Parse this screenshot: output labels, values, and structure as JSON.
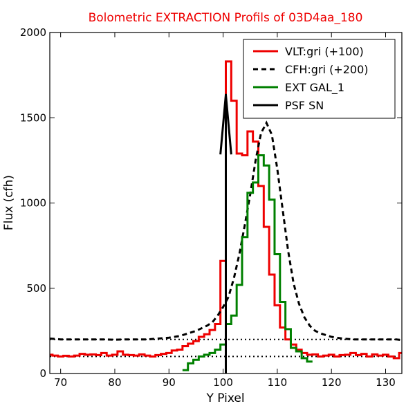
{
  "chart_data": {
    "type": "line",
    "title": "Bolometric EXTRACTION Profils of 03D4aa_180",
    "title_color": "#ee0000",
    "xlabel": "Y Pixel",
    "ylabel": "Flux (cfh)",
    "xlim": [
      68,
      133
    ],
    "ylim": [
      0,
      2000
    ],
    "xticks": [
      70,
      80,
      90,
      100,
      110,
      120,
      130
    ],
    "xtick_labels": [
      "70",
      "80",
      "90",
      "100",
      "110",
      "120",
      "130"
    ],
    "yticks": [
      0,
      500,
      1000,
      1500,
      2000
    ],
    "ytick_labels": [
      "0",
      "500",
      "1000",
      "1500",
      "2000"
    ],
    "grid": false,
    "legend_position": "top-right",
    "reference_lines": [
      {
        "y": 100,
        "style": "dotted",
        "color": "#000000"
      },
      {
        "y": 200,
        "style": "dotted",
        "color": "#000000"
      }
    ],
    "series": [
      {
        "name": "VLT:gri (+100)",
        "color": "#ee0000",
        "style": "steps",
        "x": [
          68,
          69,
          70,
          71,
          72,
          73,
          74,
          75,
          76,
          77,
          78,
          79,
          80,
          81,
          82,
          83,
          84,
          85,
          86,
          87,
          88,
          89,
          90,
          91,
          92,
          93,
          94,
          95,
          96,
          97,
          98,
          99,
          100,
          101,
          102,
          103,
          104,
          105,
          106,
          107,
          108,
          109,
          110,
          111,
          112,
          113,
          114,
          115,
          116,
          117,
          118,
          119,
          120,
          121,
          122,
          123,
          124,
          125,
          126,
          127,
          128,
          129,
          130,
          131,
          132,
          133
        ],
        "y": [
          110,
          105,
          100,
          104,
          100,
          105,
          115,
          110,
          112,
          108,
          120,
          105,
          110,
          130,
          110,
          108,
          105,
          112,
          105,
          100,
          108,
          115,
          120,
          135,
          140,
          160,
          175,
          190,
          215,
          230,
          255,
          290,
          660,
          1830,
          1600,
          1290,
          1280,
          1420,
          1360,
          1100,
          860,
          580,
          400,
          270,
          200,
          170,
          140,
          120,
          110,
          112,
          100,
          105,
          110,
          100,
          108,
          110,
          120,
          108,
          115,
          100,
          112,
          105,
          110,
          100,
          90,
          120
        ]
      },
      {
        "name": "CFH:gri (+200)",
        "color": "#000000",
        "style": "dashed",
        "x": [
          68,
          70,
          72,
          74,
          76,
          78,
          80,
          82,
          84,
          86,
          88,
          90,
          92,
          94,
          95,
          96,
          97,
          98,
          99,
          100,
          101,
          102,
          103,
          104,
          105,
          106,
          107,
          108,
          109,
          110,
          111,
          112,
          113,
          114,
          115,
          116,
          117,
          118,
          120,
          122,
          124,
          126,
          128,
          130,
          132,
          133
        ],
        "y": [
          205,
          200,
          200,
          200,
          200,
          200,
          198,
          200,
          200,
          200,
          205,
          210,
          220,
          240,
          250,
          265,
          280,
          300,
          340,
          390,
          450,
          560,
          700,
          870,
          1050,
          1250,
          1410,
          1470,
          1400,
          1200,
          960,
          720,
          530,
          410,
          330,
          280,
          250,
          235,
          215,
          205,
          200,
          200,
          200,
          200,
          200,
          195
        ]
      },
      {
        "name": "EXT GAL_1",
        "color": "#008000",
        "style": "steps",
        "x": [
          93,
          94,
          95,
          96,
          97,
          98,
          99,
          100,
          101,
          102,
          103,
          104,
          105,
          106,
          107,
          108,
          109,
          110,
          111,
          112,
          113,
          114,
          115,
          116
        ],
        "y": [
          20,
          60,
          80,
          100,
          110,
          120,
          140,
          170,
          290,
          340,
          520,
          800,
          1060,
          1120,
          1280,
          1220,
          1020,
          700,
          420,
          260,
          150,
          130,
          90,
          70
        ]
      },
      {
        "name": "PSF SN",
        "color": "#000000",
        "style": "solid",
        "x": [
          99.5,
          100.5,
          101.5
        ],
        "y": [
          1285,
          1635,
          1285
        ]
      }
    ],
    "vertical_line": {
      "x": 100.5,
      "y_top": 1640,
      "color": "#000000"
    }
  }
}
